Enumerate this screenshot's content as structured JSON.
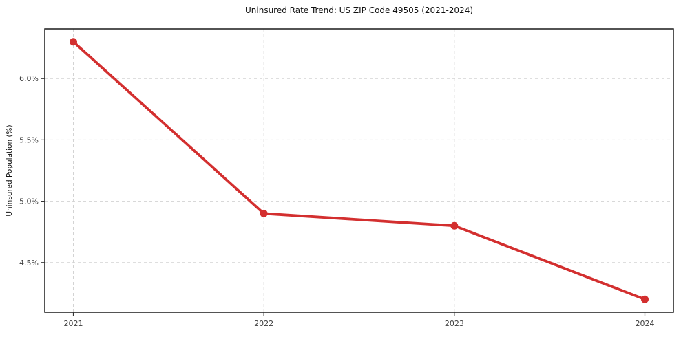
{
  "figure": {
    "background": "#ffffff"
  },
  "chart_data": {
    "type": "line",
    "title": "Uninsured Rate Trend: US ZIP Code 49505 (2021-2024)",
    "xlabel": "",
    "ylabel": "Uninsured Population (%)",
    "x": [
      2021,
      2022,
      2023,
      2024
    ],
    "x_tick_labels": [
      "2021",
      "2022",
      "2023",
      "2024"
    ],
    "series": [
      {
        "name": "uninsured-rate",
        "values": [
          6.3,
          4.9,
          4.8,
          4.2
        ],
        "color": "#d32f2f",
        "marker": "circle",
        "marker_size": 11,
        "line_width": 3.8
      }
    ],
    "y_ticks": [
      4.5,
      5.0,
      5.5,
      6.0
    ],
    "y_tick_labels": [
      "4.5%",
      "5.0%",
      "5.5%",
      "6.0%"
    ],
    "xlim": [
      2020.85,
      2024.15
    ],
    "ylim": [
      4.095,
      6.405
    ],
    "grid": "dashed",
    "grid_color": "#d3d3d3",
    "spine_color": "#1a1a1a",
    "tick_color": "#333333",
    "tick_label_color": "#3d3d3d",
    "legend": "none"
  }
}
